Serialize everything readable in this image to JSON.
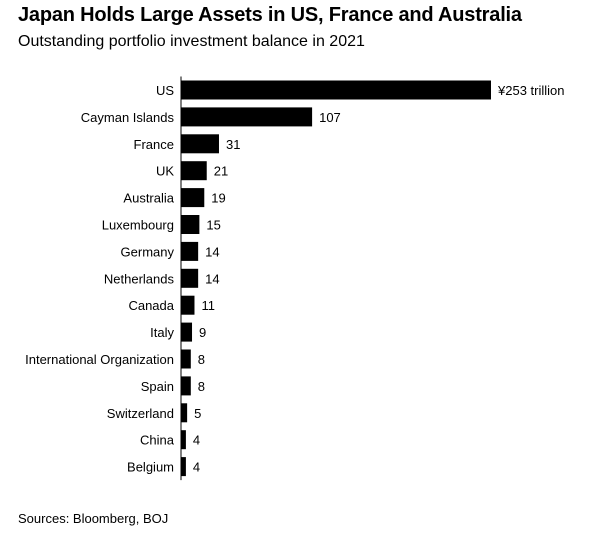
{
  "title": "Japan Holds Large Assets in US, France and Australia",
  "subtitle": "Outstanding portfolio investment balance in 2021",
  "source": "Sources: Bloomberg, BOJ",
  "chart_data": {
    "type": "bar",
    "orientation": "horizontal",
    "title": "Japan Holds Large Assets in US, France and Australia",
    "subtitle": "Outstanding portfolio investment balance in 2021",
    "unit": "¥ trillion",
    "categories": [
      "US",
      "Cayman Islands",
      "France",
      "UK",
      "Australia",
      "Luxembourg",
      "Germany",
      "Netherlands",
      "Canada",
      "Italy",
      "International Organization",
      "Spain",
      "Switzerland",
      "China",
      "Belgium"
    ],
    "values": [
      253,
      107,
      31,
      21,
      19,
      15,
      14,
      14,
      11,
      9,
      8,
      8,
      5,
      4,
      4
    ],
    "value_labels": [
      "¥253 trillion",
      "107",
      "31",
      "21",
      "19",
      "15",
      "14",
      "14",
      "11",
      "9",
      "8",
      "8",
      "5",
      "4",
      "4"
    ],
    "xlim": [
      0,
      253
    ],
    "grid": false,
    "legend": "none",
    "bar_color": "#000000",
    "axis_color": "#000000"
  }
}
